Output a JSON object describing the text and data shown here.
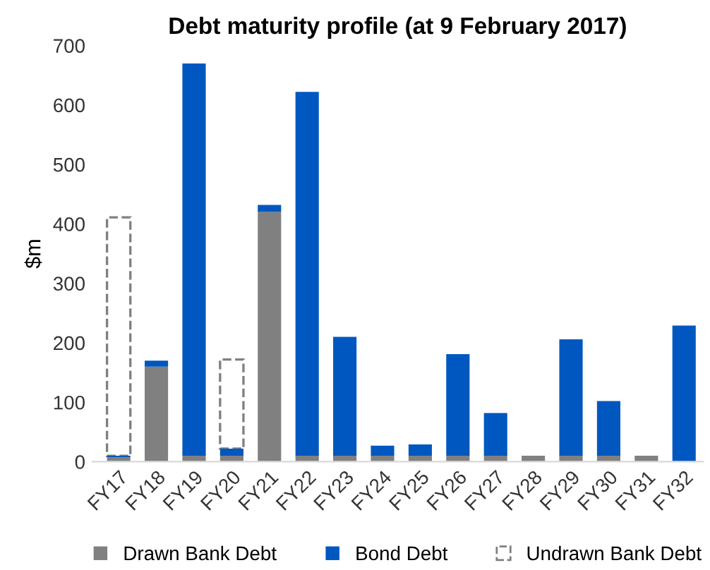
{
  "chart_data": {
    "type": "bar",
    "title": "Debt maturity profile (at 9 February 2017)",
    "ylabel": "$m",
    "stacked": true,
    "categories": [
      "FY17",
      "FY18",
      "FY19",
      "FY20",
      "FY21",
      "FY22",
      "FY23",
      "FY24",
      "FY25",
      "FY26",
      "FY27",
      "FY28",
      "FY29",
      "FY30",
      "FY31",
      "FY32"
    ],
    "series": [
      {
        "name": "Drawn Bank Debt",
        "color": "#808080",
        "values": [
          7,
          160,
          10,
          10,
          420,
          10,
          10,
          10,
          10,
          10,
          10,
          10,
          10,
          10,
          10,
          null
        ]
      },
      {
        "name": "Bond Debt",
        "color": "#0057bf",
        "values": [
          3,
          10,
          660,
          12,
          12,
          612,
          200,
          17,
          19,
          171,
          72,
          null,
          196,
          92,
          null,
          229
        ]
      },
      {
        "name": "Undrawn Bank Debt",
        "color": "#808080",
        "line_style": "dashed",
        "values": [
          401,
          null,
          null,
          150,
          null,
          null,
          null,
          null,
          null,
          null,
          null,
          null,
          null,
          null,
          null,
          null
        ]
      }
    ],
    "ylim": [
      0,
      700
    ],
    "yticks": [
      0,
      100,
      200,
      300,
      400,
      500,
      600,
      700
    ],
    "grid": false,
    "legend": "bottom"
  }
}
